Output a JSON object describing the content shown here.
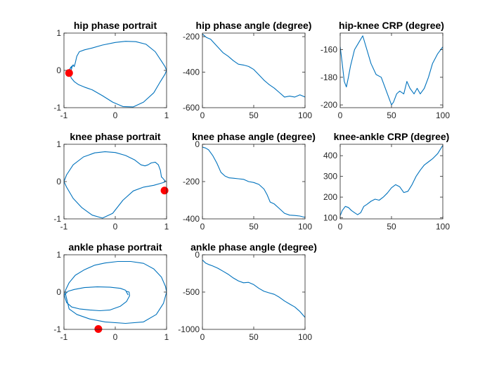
{
  "figure": {
    "line_color": "#0072BD",
    "marker_color": "#FF0000",
    "axis_color": "#262626"
  },
  "chart_data": [
    {
      "id": "hip-phase-portrait",
      "type": "line",
      "title": "hip phase portrait",
      "xlim": [
        -1,
        1
      ],
      "ylim": [
        -1,
        1
      ],
      "xticks": [
        -1,
        0,
        1
      ],
      "yticks": [
        -1,
        0,
        1
      ],
      "xticklabels": [
        "-1",
        "0",
        "1"
      ],
      "yticklabels": [
        "-1",
        "0",
        "1"
      ],
      "series": [
        {
          "x": [
            -0.95,
            -0.92,
            -0.88,
            -0.84,
            -0.82,
            -0.8,
            -0.78,
            -0.75,
            -0.7,
            -0.6,
            -0.45,
            -0.25,
            0,
            0.2,
            0.4,
            0.6,
            0.78,
            0.9,
            0.97,
            1,
            0.97,
            0.88,
            0.75,
            0.55,
            0.35,
            0.15,
            -0.05,
            -0.25,
            -0.45,
            -0.6,
            -0.72,
            -0.8,
            -0.86,
            -0.88,
            -0.85,
            -0.84,
            -0.87,
            -0.91,
            -0.94,
            -0.95
          ],
          "y": [
            -0.15,
            -0.05,
            0.05,
            0.1,
            0.15,
            0.1,
            0.2,
            0.38,
            0.5,
            0.55,
            0.6,
            0.68,
            0.75,
            0.78,
            0.77,
            0.7,
            0.5,
            0.25,
            0.1,
            0,
            -0.1,
            -0.3,
            -0.6,
            -0.85,
            -0.98,
            -0.97,
            -0.85,
            -0.68,
            -0.52,
            -0.45,
            -0.38,
            -0.3,
            -0.2,
            -0.08,
            0.05,
            0.12,
            0.08,
            -0.05,
            -0.12,
            -0.15
          ]
        }
      ],
      "markers": [
        {
          "x": -0.9,
          "y": -0.07
        }
      ]
    },
    {
      "id": "hip-phase-angle",
      "type": "line",
      "title": "hip phase angle (degree)",
      "xlim": [
        0,
        100
      ],
      "ylim": [
        -600,
        -180
      ],
      "xticks": [
        0,
        50,
        100
      ],
      "yticks": [
        -200,
        -400,
        -600
      ],
      "xticklabels": [
        "0",
        "50",
        "100"
      ],
      "yticklabels": [
        "-200",
        "-400",
        "-600"
      ],
      "series": [
        {
          "x": [
            0,
            4,
            8,
            12,
            16,
            20,
            25,
            30,
            35,
            40,
            45,
            50,
            55,
            60,
            65,
            70,
            75,
            80,
            85,
            90,
            95,
            100
          ],
          "y": [
            -185,
            -205,
            -215,
            -240,
            -265,
            -290,
            -310,
            -335,
            -355,
            -360,
            -368,
            -385,
            -415,
            -445,
            -470,
            -490,
            -515,
            -540,
            -535,
            -540,
            -528,
            -540
          ]
        }
      ]
    },
    {
      "id": "hip-knee-crp",
      "type": "line",
      "title": "hip-knee CRP (degree)",
      "xlim": [
        0,
        100
      ],
      "ylim": [
        -202,
        -148
      ],
      "xticks": [
        0,
        50,
        100
      ],
      "yticks": [
        -160,
        -180,
        -200
      ],
      "xticklabels": [
        "0",
        "50",
        "100"
      ],
      "yticklabels": [
        "-160",
        "-180",
        "-200"
      ],
      "series": [
        {
          "x": [
            0,
            2,
            4,
            6,
            8,
            10,
            14,
            18,
            22,
            26,
            30,
            35,
            40,
            45,
            50,
            52,
            55,
            58,
            62,
            65,
            68,
            72,
            75,
            78,
            82,
            86,
            90,
            95,
            100
          ],
          "y": [
            -158,
            -170,
            -183,
            -187,
            -180,
            -172,
            -160,
            -155,
            -150,
            -160,
            -170,
            -178,
            -180,
            -190,
            -200,
            -198,
            -192,
            -190,
            -192,
            -183,
            -188,
            -192,
            -188,
            -192,
            -188,
            -180,
            -170,
            -163,
            -158
          ]
        }
      ]
    },
    {
      "id": "knee-phase-portrait",
      "type": "line",
      "title": "knee phase portrait",
      "xlim": [
        -1,
        1
      ],
      "ylim": [
        -1,
        1
      ],
      "xticks": [
        -1,
        0,
        1
      ],
      "yticks": [
        -1,
        0,
        1
      ],
      "xticklabels": [
        "-1",
        "0",
        "1"
      ],
      "yticklabels": [
        "-1",
        "0",
        "1"
      ],
      "series": [
        {
          "x": [
            -1,
            -0.95,
            -0.82,
            -0.62,
            -0.4,
            -0.2,
            0,
            0.2,
            0.38,
            0.5,
            0.58,
            0.64,
            0.7,
            0.78,
            0.84,
            0.88,
            0.9,
            0.92,
            0.95,
            0.98,
            0.95,
            0.88,
            0.75,
            0.55,
            0.35,
            0.15,
            -0.05,
            -0.25,
            -0.45,
            -0.65,
            -0.82,
            -0.95,
            -1
          ],
          "y": [
            0,
            0.18,
            0.45,
            0.66,
            0.77,
            0.8,
            0.78,
            0.7,
            0.58,
            0.45,
            0.42,
            0.45,
            0.5,
            0.52,
            0.45,
            0.3,
            0.12,
            0.1,
            0.05,
            0.01,
            -0.02,
            -0.05,
            -0.1,
            -0.15,
            -0.25,
            -0.5,
            -0.85,
            -0.98,
            -0.9,
            -0.7,
            -0.45,
            -0.15,
            0
          ]
        }
      ],
      "markers": [
        {
          "x": 0.96,
          "y": -0.24
        }
      ]
    },
    {
      "id": "knee-phase-angle",
      "type": "line",
      "title": "knee phase angle (degree)",
      "xlim": [
        0,
        100
      ],
      "ylim": [
        -400,
        0
      ],
      "xticks": [
        0,
        50,
        100
      ],
      "yticks": [
        0,
        -200,
        -400
      ],
      "xticklabels": [
        "0",
        "50",
        "100"
      ],
      "yticklabels": [
        "0",
        "-200",
        "-400"
      ],
      "series": [
        {
          "x": [
            0,
            3,
            6,
            10,
            14,
            18,
            22,
            26,
            30,
            35,
            40,
            45,
            50,
            55,
            60,
            63,
            66,
            70,
            75,
            80,
            85,
            90,
            95,
            100
          ],
          "y": [
            -15,
            -20,
            -30,
            -60,
            -100,
            -150,
            -170,
            -180,
            -182,
            -185,
            -188,
            -200,
            -205,
            -215,
            -240,
            -270,
            -310,
            -320,
            -345,
            -370,
            -380,
            -382,
            -385,
            -392
          ]
        }
      ]
    },
    {
      "id": "knee-ankle-crp",
      "type": "line",
      "title": "knee-ankle CRP (degree)",
      "xlim": [
        0,
        100
      ],
      "ylim": [
        95,
        455
      ],
      "xticks": [
        0,
        50,
        100
      ],
      "yticks": [
        100,
        200,
        300,
        400
      ],
      "xticklabels": [
        "0",
        "50",
        "100"
      ],
      "yticklabels": [
        "100",
        "200",
        "300",
        "400"
      ],
      "series": [
        {
          "x": [
            0,
            2,
            5,
            8,
            11,
            14,
            17,
            20,
            23,
            26,
            30,
            34,
            38,
            42,
            46,
            50,
            54,
            58,
            62,
            66,
            70,
            74,
            78,
            82,
            86,
            90,
            95,
            100
          ],
          "y": [
            110,
            135,
            155,
            150,
            135,
            125,
            115,
            125,
            155,
            165,
            180,
            190,
            185,
            200,
            220,
            245,
            260,
            250,
            222,
            228,
            260,
            300,
            330,
            355,
            370,
            385,
            410,
            450
          ]
        }
      ]
    },
    {
      "id": "ankle-phase-portrait",
      "type": "line",
      "title": "ankle phase portrait",
      "xlim": [
        -1,
        1
      ],
      "ylim": [
        -1,
        1
      ],
      "xticks": [
        -1,
        0,
        1
      ],
      "yticks": [
        -1,
        0,
        1
      ],
      "xticklabels": [
        "-1",
        "0",
        "1"
      ],
      "yticklabels": [
        "-1",
        "0",
        "1"
      ],
      "series": [
        {
          "x": [
            0.25,
            0.2,
            0.1,
            -0.1,
            -0.35,
            -0.6,
            -0.8,
            -0.92,
            -0.97,
            -0.9,
            -0.75,
            -0.5,
            -0.2,
            0.2,
            0.55,
            0.8,
            0.94,
            1,
            0.98,
            0.9,
            0.75,
            0.55,
            0.3,
            0.05,
            -0.2,
            -0.4,
            -0.6,
            -0.78,
            -0.9,
            -0.97,
            -0.99,
            -0.95,
            -0.85,
            -0.7,
            -0.5,
            -0.3,
            -0.1,
            0.1,
            0.22,
            0.28,
            0.27,
            0.22
          ],
          "y": [
            -0.08,
            0.05,
            0.1,
            0.13,
            0.14,
            0.12,
            0.07,
            0.02,
            -0.05,
            -0.45,
            -0.6,
            -0.72,
            -0.8,
            -0.84,
            -0.8,
            -0.6,
            -0.3,
            0,
            0.15,
            0.4,
            0.62,
            0.77,
            0.82,
            0.82,
            0.78,
            0.72,
            0.6,
            0.45,
            0.25,
            0.05,
            -0.1,
            -0.28,
            -0.4,
            -0.45,
            -0.48,
            -0.5,
            -0.48,
            -0.38,
            -0.25,
            -0.1,
            0,
            0.02
          ]
        }
      ],
      "markers": [
        {
          "x": -0.33,
          "y": -0.99
        }
      ]
    },
    {
      "id": "ankle-phase-angle",
      "type": "line",
      "title": "ankle phase angle (degree)",
      "xlim": [
        0,
        100
      ],
      "ylim": [
        -1000,
        0
      ],
      "xticks": [
        0,
        50,
        100
      ],
      "yticks": [
        0,
        -500,
        -1000
      ],
      "xticklabels": [
        "0",
        "50",
        "100"
      ],
      "yticklabels": [
        "0",
        "-500",
        "-1000"
      ],
      "series": [
        {
          "x": [
            0,
            3,
            6,
            10,
            15,
            20,
            25,
            30,
            35,
            40,
            45,
            50,
            55,
            60,
            65,
            70,
            75,
            80,
            85,
            90,
            95,
            100
          ],
          "y": [
            -70,
            -110,
            -130,
            -150,
            -180,
            -220,
            -260,
            -310,
            -350,
            -375,
            -370,
            -400,
            -450,
            -490,
            -510,
            -530,
            -570,
            -620,
            -660,
            -700,
            -760,
            -840
          ]
        }
      ]
    }
  ]
}
